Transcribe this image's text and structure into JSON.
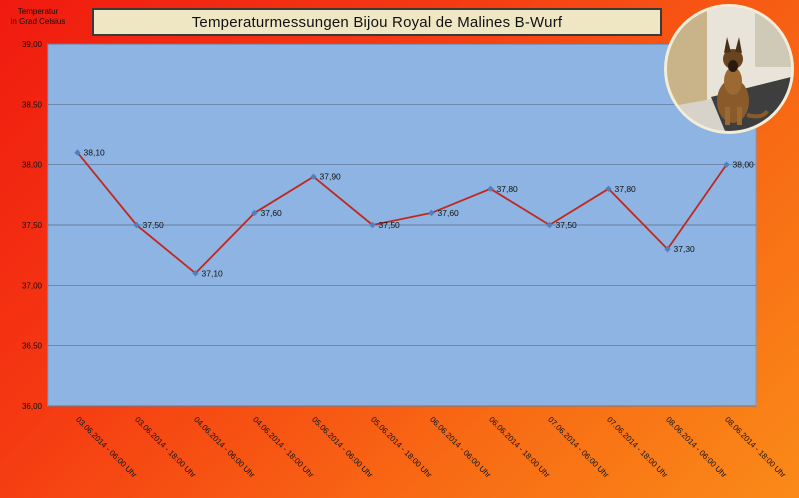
{
  "chart_data": {
    "type": "line",
    "title": "Temperaturmessungen  Bijou Royal de Malines  B-Wurf",
    "ylabel_lines": [
      "Temperatur",
      "in Grad Celsius"
    ],
    "xlabel": "",
    "categories": [
      "03.06.2014 - 06:00 Uhr",
      "03.06.2014 - 18:00 Uhr",
      "04.06.2014 - 06:00 Uhr",
      "04.06.2014 - 18:00 Uhr",
      "05.06.2014 - 06:00 Uhr",
      "05.06.2014 - 18:00 Uhr",
      "06.06.2014 - 06:00 Uhr",
      "06.06.2014 - 18:00 Uhr",
      "07.06.2014 - 06:00 Uhr",
      "07.06.2014 - 18:00 Uhr",
      "08.06.2014 - 06:00 Uhr",
      "08.06.2014 - 18:00 Uhr"
    ],
    "series": [
      {
        "values": [
          38.1,
          37.5,
          37.1,
          37.6,
          37.9,
          37.5,
          37.6,
          37.8,
          37.5,
          37.8,
          37.3,
          38.0
        ],
        "labels": [
          "38,10",
          "37,50",
          "37,10",
          "37,60",
          "37,90",
          "37,50",
          "37,60",
          "37,80",
          "37,50",
          "37,80",
          "37,30",
          "38,00"
        ],
        "color": "#c0281e",
        "marker_color": "#4f81bd"
      }
    ],
    "ylim": [
      36.0,
      39.0
    ],
    "yticks": [
      36.0,
      36.5,
      37.0,
      37.5,
      38.0,
      38.5,
      39.0
    ],
    "ytick_labels": [
      "36,00",
      "36,50",
      "37,00",
      "37,50",
      "38,00",
      "38,50",
      "39,00"
    ],
    "grid": true,
    "plot_background": "#8db4e2",
    "legend": "none"
  }
}
